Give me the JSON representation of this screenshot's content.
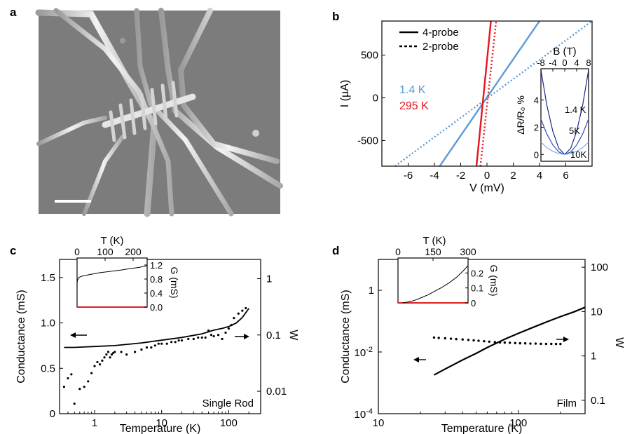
{
  "panels": {
    "a": {
      "letter": "a"
    },
    "b": {
      "letter": "b"
    },
    "c": {
      "letter": "c"
    },
    "d": {
      "letter": "d"
    }
  },
  "colors": {
    "blue": "#5b9bd5",
    "red": "#e8141b",
    "inset_red": "#e02020",
    "navy": "#1a2a8c",
    "sem_bg": "#7e7e7e",
    "rod": "#d8d8d8"
  },
  "chart_data": [
    {
      "panel": "b",
      "type": "line",
      "xlabel": "V (mV)",
      "ylabel": "I (µA)",
      "xlim": [
        -8,
        8
      ],
      "ylim": [
        -800,
        900
      ],
      "xticks": [
        -6,
        -4,
        -2,
        0,
        2,
        4,
        6
      ],
      "yticks": [
        -500,
        0,
        500
      ],
      "legend": {
        "placement": "top-left",
        "solid": "4-probe",
        "dashed": "2-probe"
      },
      "annotations": {
        "blue": "1.4 K",
        "red": "295 K"
      },
      "series": [
        {
          "name": "1.4 K",
          "style": "solid",
          "color": "blue",
          "x": [
            -3.6,
            4.0
          ],
          "y": [
            -800,
            900
          ]
        },
        {
          "name": "1.4 K",
          "style": "dotted",
          "color": "blue",
          "x": [
            -7.0,
            8.0
          ],
          "y": [
            -800,
            900
          ]
        },
        {
          "name": "295 K",
          "style": "solid",
          "color": "red",
          "x": [
            -0.8,
            0.3
          ],
          "y": [
            -800,
            900
          ]
        },
        {
          "name": "295 K",
          "style": "dotted",
          "color": "red",
          "x": [
            -0.5,
            0.7
          ],
          "y": [
            -800,
            900
          ]
        }
      ],
      "inset": {
        "xlabel": "B (T)",
        "ylabel": "ΔR/R₀ %",
        "xticks": [
          -8,
          -4,
          0,
          4,
          8
        ],
        "yticks": [
          0,
          2,
          4
        ],
        "xlim": [
          -8,
          8
        ],
        "ylim": [
          -0.5,
          6.3
        ],
        "curve_labels": [
          "1.4 K",
          "5K",
          "10K"
        ],
        "series": [
          {
            "name": "1.4 K",
            "x": [
              -8,
              -6,
              -4,
              -2,
              0,
              2,
              4,
              6,
              8
            ],
            "y": [
              6.2,
              3.6,
              1.7,
              0.45,
              0,
              0.45,
              1.7,
              3.6,
              6.2
            ]
          },
          {
            "name": "5K",
            "x": [
              -8,
              -6,
              -4,
              -2,
              0,
              2,
              4,
              6,
              8
            ],
            "y": [
              2.6,
              1.5,
              0.7,
              0.18,
              0,
              0.18,
              0.7,
              1.5,
              2.6
            ]
          },
          {
            "name": "10K",
            "x": [
              -8,
              -6,
              -4,
              -2,
              0,
              2,
              4,
              6,
              8
            ],
            "y": [
              0.9,
              0.5,
              0.23,
              0.06,
              0,
              0.06,
              0.23,
              0.5,
              0.9
            ]
          }
        ]
      }
    },
    {
      "panel": "c",
      "type": "line",
      "xlabel": "Temperature (K)",
      "ylabel": "Conductance (mS)",
      "y2label": "W",
      "annotation": "Single Rod",
      "xscale": "log",
      "xlim": [
        0.3,
        300
      ],
      "xticks": [
        1,
        10,
        100
      ],
      "ylim": [
        0,
        1.7
      ],
      "yticks": [
        0,
        0.5,
        1.0,
        1.5
      ],
      "y2scale": "log",
      "y2lim": [
        0.004,
        2.2
      ],
      "y2ticks": [
        0.01,
        0.1,
        1
      ],
      "series": [
        {
          "name": "conductance",
          "axis": "left",
          "style": "solid",
          "x": [
            0.35,
            0.5,
            1,
            2,
            5,
            10,
            20,
            40,
            60,
            80,
            100,
            130,
            160,
            200
          ],
          "y": [
            0.73,
            0.73,
            0.74,
            0.75,
            0.78,
            0.81,
            0.84,
            0.88,
            0.92,
            0.94,
            0.96,
            1.0,
            1.06,
            1.16
          ]
        },
        {
          "name": "W",
          "axis": "right",
          "style": "dots",
          "x": [
            0.35,
            0.4,
            0.45,
            0.5,
            0.6,
            0.7,
            0.8,
            0.9,
            1.0,
            1.1,
            1.2,
            1.3,
            1.4,
            1.5,
            1.6,
            1.7,
            1.8,
            1.9,
            2.0,
            2.5,
            3,
            4,
            5,
            6,
            7,
            8,
            9,
            10,
            12,
            14,
            16,
            18,
            20,
            25,
            30,
            35,
            40,
            45,
            50,
            55,
            60,
            70,
            80,
            90,
            100,
            110,
            120,
            140,
            160,
            180
          ],
          "y": [
            0.012,
            0.017,
            0.02,
            0.006,
            0.011,
            0.012,
            0.015,
            0.021,
            0.028,
            0.033,
            0.03,
            0.035,
            0.04,
            0.045,
            0.05,
            0.04,
            0.045,
            0.048,
            0.05,
            0.05,
            0.045,
            0.05,
            0.055,
            0.06,
            0.06,
            0.065,
            0.07,
            0.07,
            0.07,
            0.075,
            0.075,
            0.08,
            0.08,
            0.085,
            0.085,
            0.09,
            0.09,
            0.09,
            0.12,
            0.1,
            0.095,
            0.1,
            0.085,
            0.11,
            0.13,
            0.15,
            0.2,
            0.24,
            0.27,
            0.3
          ]
        }
      ],
      "inset": {
        "xlabel": "T (K)",
        "ylabel": "G (mS)",
        "xlim": [
          0,
          250
        ],
        "xticks": [
          0,
          100,
          200
        ],
        "ylim": [
          0,
          1.4
        ],
        "yticks": [
          0.0,
          0.4,
          0.8,
          1.2
        ],
        "series": [
          {
            "name": "G",
            "x": [
              0,
              2,
              5,
              10,
              20,
              40,
              60,
              80,
              100,
              130,
              160,
              190,
              220,
              250
            ],
            "y": [
              0.7,
              0.78,
              0.83,
              0.86,
              0.89,
              0.92,
              0.95,
              0.98,
              1.0,
              1.03,
              1.06,
              1.1,
              1.13,
              1.18
            ]
          }
        ]
      }
    },
    {
      "panel": "d",
      "type": "line",
      "xlabel": "Temperature (K)",
      "ylabel": "Conductance (mS)",
      "y2label": "W",
      "annotation": "Film",
      "xscale": "log",
      "xlim": [
        10,
        300
      ],
      "xticks": [
        10,
        100
      ],
      "yscale": "log",
      "ylim": [
        0.0001,
        10
      ],
      "yticks": [
        0.0001,
        0.01,
        1
      ],
      "y2scale": "log",
      "y2lim": [
        0.05,
        150
      ],
      "y2ticks": [
        0.1,
        1,
        10,
        100
      ],
      "series": [
        {
          "name": "conductance",
          "axis": "left",
          "style": "solid",
          "x": [
            25,
            30,
            40,
            50,
            60,
            80,
            100,
            130,
            160,
            200,
            250,
            300
          ],
          "y": [
            0.0018,
            0.0028,
            0.0055,
            0.009,
            0.014,
            0.026,
            0.04,
            0.065,
            0.095,
            0.14,
            0.2,
            0.28
          ]
        },
        {
          "name": "W",
          "axis": "right",
          "style": "dots",
          "x": [
            25,
            27,
            30,
            33,
            36,
            40,
            44,
            48,
            52,
            57,
            62,
            68,
            74,
            80,
            87,
            95,
            103,
            112,
            122,
            133,
            145,
            158,
            172,
            186,
            200
          ],
          "y": [
            2.6,
            2.55,
            2.5,
            2.45,
            2.4,
            2.35,
            2.3,
            2.25,
            2.2,
            2.15,
            2.1,
            2.05,
            2.02,
            2.0,
            1.98,
            1.95,
            1.93,
            1.92,
            1.9,
            1.9,
            1.88,
            1.87,
            1.87,
            1.86,
            1.86
          ]
        }
      ],
      "inset": {
        "xlabel": "T (K)",
        "ylabel": "G (mS)",
        "xlim": [
          0,
          300
        ],
        "xticks": [
          0,
          150,
          300
        ],
        "ylim": [
          0,
          0.3
        ],
        "yticks": [
          0,
          0.1,
          0.2
        ],
        "series": [
          {
            "name": "G",
            "x": [
              20,
              40,
              60,
              80,
              100,
              130,
              160,
              190,
              220,
              250,
              280,
              300
            ],
            "y": [
              0.0,
              0.005,
              0.012,
              0.022,
              0.035,
              0.055,
              0.08,
              0.105,
              0.135,
              0.17,
              0.215,
              0.25
            ]
          }
        ]
      }
    }
  ]
}
